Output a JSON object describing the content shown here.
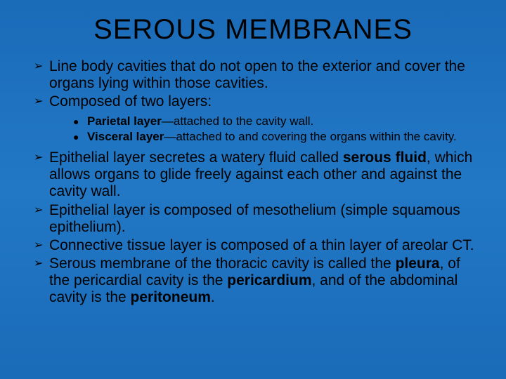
{
  "slide": {
    "title": "SEROUS MEMBRANES",
    "bullets": [
      {
        "text": "Line body cavities that do not open to the exterior and cover the organs lying within those cavities."
      },
      {
        "text": "Composed of two layers:"
      }
    ],
    "sub_bullets": [
      {
        "bold": "Parietal layer",
        "rest": "—attached to the cavity wall."
      },
      {
        "bold": "Visceral layer",
        "rest": "—attached to and covering the organs within the cavity."
      }
    ],
    "bullets2": [
      {
        "pre": "Epithelial layer secretes a watery fluid called ",
        "bold": "serous fluid",
        "post": ", which allows organs to glide freely against each other and against the cavity wall."
      },
      {
        "text": "Epithelial layer is composed of mesothelium (simple squamous epithelium)."
      },
      {
        "text": "Connective tissue layer is composed of a thin layer of areolar CT."
      },
      {
        "pre": "Serous membrane of the thoracic cavity is called the ",
        "bold1": "pleura",
        "mid": ", of the pericardial cavity is the ",
        "bold2": "pericardium",
        "mid2": ", and of the abdominal cavity is the ",
        "bold3": "peritoneum",
        "post": "."
      }
    ],
    "markers": {
      "arrow": "➢",
      "dot": "●"
    }
  }
}
